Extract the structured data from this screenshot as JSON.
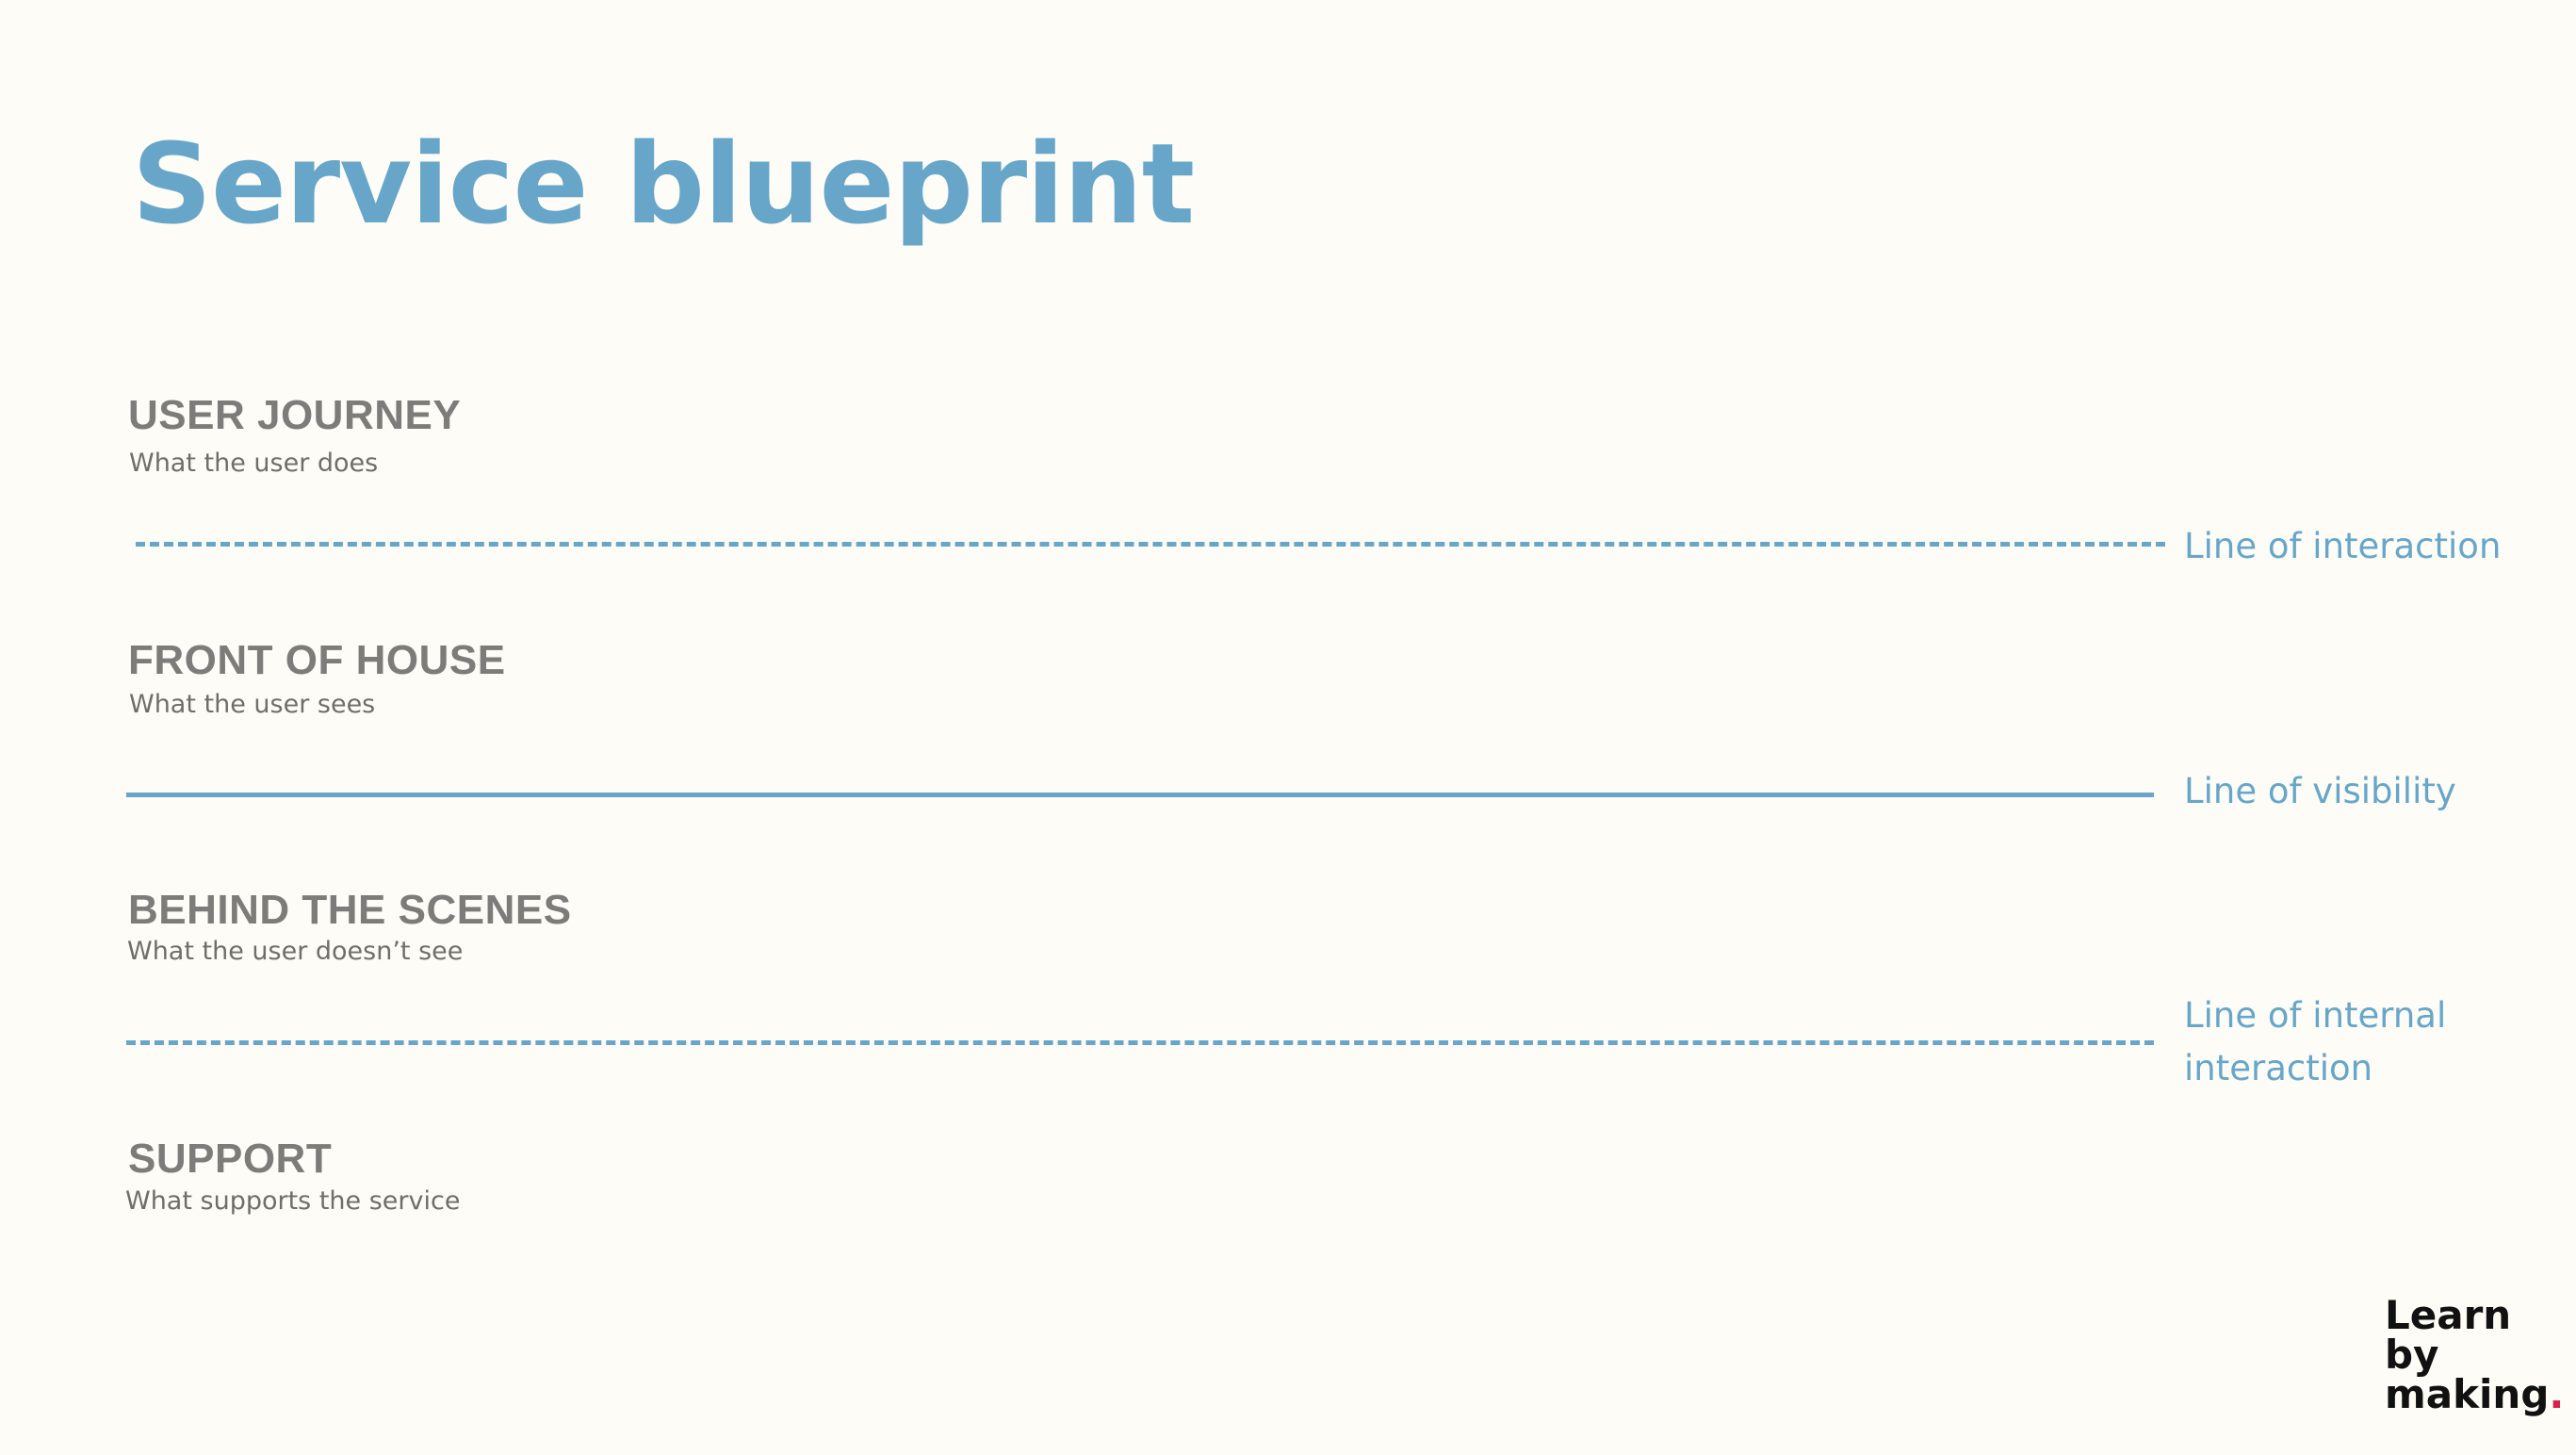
{
  "title": "Service blueprint",
  "sections": [
    {
      "heading": "USER JOURNEY",
      "description": "What the user does"
    },
    {
      "heading": "FRONT OF HOUSE",
      "description": "What the user sees"
    },
    {
      "heading": "BEHIND THE SCENES",
      "description": "What the user doesn’t see"
    },
    {
      "heading": "SUPPORT",
      "description": "What supports the service"
    }
  ],
  "lines": [
    {
      "label": "Line of interaction",
      "style": "dashed"
    },
    {
      "label": "Line of visibility",
      "style": "solid"
    },
    {
      "label": "Line of internal interaction",
      "style": "dashed"
    }
  ],
  "logo": {
    "line1": "Learn",
    "line2": "by",
    "line3": "making",
    "dot": "."
  },
  "colors": {
    "accent": "#68a6c9",
    "heading": "#7d7c78",
    "background": "#fdfcf6",
    "logo_dot": "#d6224f"
  }
}
